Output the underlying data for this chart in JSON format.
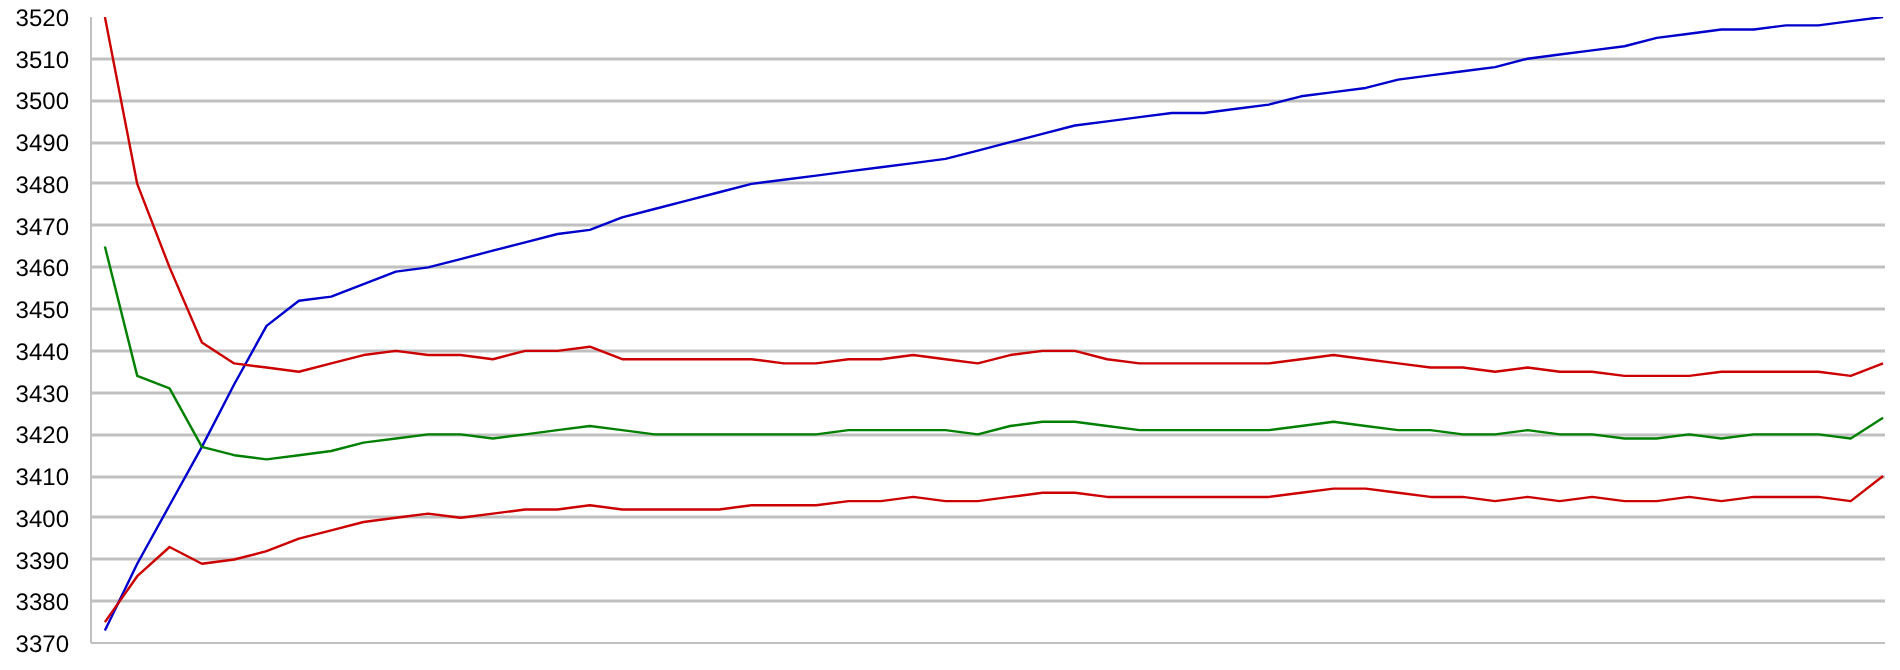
{
  "chart_data": {
    "type": "line",
    "categories": [
      null,
      null,
      null,
      null,
      null,
      null,
      null,
      null,
      null,
      null,
      null,
      null,
      null,
      null,
      null,
      null,
      null,
      null,
      null,
      null,
      null,
      null,
      null,
      null,
      null,
      null,
      null,
      null,
      null,
      null,
      null,
      null,
      null,
      null,
      null,
      null,
      null,
      null,
      null,
      null,
      null,
      null,
      null,
      null,
      null,
      null,
      null,
      null,
      null,
      null,
      null,
      null,
      null,
      null,
      null,
      null
    ],
    "series": [
      {
        "color": "#0000cc",
        "values": [
          3373,
          3389,
          3403,
          3417,
          3432,
          3446,
          3452,
          3453,
          3456,
          3459,
          3460,
          3462,
          3464,
          3466,
          3468,
          3469,
          3472,
          3474,
          3476,
          3478,
          3480,
          3481,
          3482,
          3483,
          3484,
          3485,
          3486,
          3488,
          3490,
          3492,
          3494,
          3495,
          3496,
          3497,
          3497,
          3498,
          3499,
          3501,
          3502,
          3503,
          3505,
          3506,
          3507,
          3508,
          3510,
          3511,
          3512,
          3513,
          3515,
          3516,
          3517,
          3517,
          3518,
          3518,
          3519,
          3520
        ]
      },
      {
        "color": "#cc0000",
        "values": [
          3520,
          3480,
          3460,
          3442,
          3437,
          3436,
          3435,
          3437,
          3439,
          3440,
          3439,
          3439,
          3438,
          3440,
          3440,
          3441,
          3438,
          3438,
          3438,
          3438,
          3438,
          3437,
          3437,
          3438,
          3438,
          3439,
          3438,
          3437,
          3439,
          3440,
          3440,
          3438,
          3437,
          3437,
          3437,
          3437,
          3437,
          3438,
          3439,
          3438,
          3437,
          3436,
          3436,
          3435,
          3436,
          3435,
          3435,
          3434,
          3434,
          3434,
          3435,
          3435,
          3435,
          3435,
          3434,
          3437
        ]
      },
      {
        "color": "#008000",
        "values": [
          3465,
          3434,
          3431,
          3417,
          3415,
          3414,
          3415,
          3416,
          3418,
          3419,
          3420,
          3420,
          3419,
          3420,
          3421,
          3422,
          3421,
          3420,
          3420,
          3420,
          3420,
          3420,
          3420,
          3421,
          3421,
          3421,
          3421,
          3420,
          3422,
          3423,
          3423,
          3422,
          3421,
          3421,
          3421,
          3421,
          3421,
          3422,
          3423,
          3422,
          3421,
          3421,
          3420,
          3420,
          3421,
          3420,
          3420,
          3419,
          3419,
          3420,
          3419,
          3420,
          3420,
          3420,
          3419,
          3424
        ]
      },
      {
        "color": "#cc0000",
        "values": [
          3375,
          3386,
          3393,
          3389,
          3390,
          3392,
          3395,
          3397,
          3399,
          3400,
          3401,
          3400,
          3401,
          3402,
          3402,
          3403,
          3402,
          3402,
          3402,
          3402,
          3403,
          3403,
          3403,
          3404,
          3404,
          3405,
          3404,
          3404,
          3405,
          3406,
          3406,
          3405,
          3405,
          3405,
          3405,
          3405,
          3405,
          3406,
          3407,
          3407,
          3406,
          3405,
          3405,
          3404,
          3405,
          3404,
          3405,
          3404,
          3404,
          3405,
          3404,
          3405,
          3405,
          3405,
          3404,
          3410
        ]
      }
    ],
    "ylim": [
      3370,
      3520
    ],
    "yticks": [
      3370,
      3380,
      3390,
      3400,
      3410,
      3420,
      3430,
      3440,
      3450,
      3460,
      3470,
      3480,
      3490,
      3500,
      3510,
      3520
    ],
    "grid": "y",
    "tick_labels": "y",
    "marker": "none",
    "line_style": "solid"
  }
}
